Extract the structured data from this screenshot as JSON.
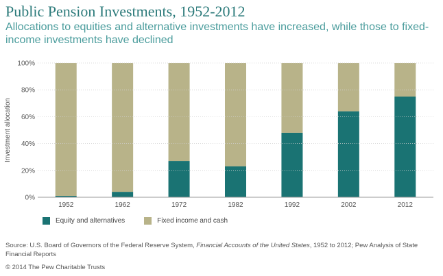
{
  "title": "Public Pension Investments, 1952-2012",
  "subtitle": "Allocations to equities and alternative investments have increased, while those to fixed-income investments have declined",
  "colors": {
    "equity": "#1a7373",
    "fixed": "#b8b389",
    "grid": "#ffffff",
    "axis_text": "#555555"
  },
  "chart_data": {
    "type": "bar",
    "stacked": true,
    "categories": [
      "1952",
      "1962",
      "1972",
      "1982",
      "1992",
      "2002",
      "2012"
    ],
    "series": [
      {
        "name": "Equity and alternatives",
        "values": [
          1,
          4,
          27,
          23,
          48,
          64,
          75
        ]
      },
      {
        "name": "Fixed income and cash",
        "values": [
          99,
          96,
          73,
          77,
          52,
          36,
          25
        ]
      }
    ],
    "ylabel": "Investment allocation",
    "ylim": [
      0,
      100
    ],
    "yticks": [
      "0%",
      "20%",
      "40%",
      "60%",
      "80%",
      "100%"
    ],
    "legend_position": "bottom-left",
    "grid": true
  },
  "source_label": "Source: U.S. Board of Governors of the Federal Reserve System, ",
  "source_italic": "Financial Accounts of the United States",
  "source_rest": ", 1952 to 2012; Pew Analysis of State Financial Reports",
  "copyright": "© 2014 The Pew Charitable Trusts"
}
